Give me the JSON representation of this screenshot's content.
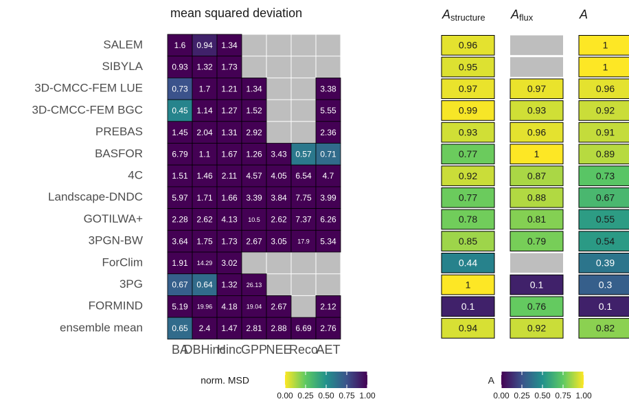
{
  "chart_data": [
    {
      "type": "heatmap",
      "title": "mean squared deviation",
      "rows": [
        "SALEM",
        "SIBYLA",
        "3D-CMCC-FEM LUE",
        "3D-CMCC-FEM BGC",
        "PREBAS",
        "BASFOR",
        "4C",
        "Landscape-DNDC",
        "GOTILWA+",
        "3PGN-BW",
        "ForClim",
        "3PG",
        "FORMIND",
        "ensemble mean"
      ],
      "columns": [
        "BA",
        "DBHinc",
        "Hinc",
        "GPP",
        "NEE",
        "Reco",
        "AET"
      ],
      "values": [
        [
          1.6,
          0.94,
          1.34,
          null,
          null,
          null,
          null
        ],
        [
          0.93,
          1.32,
          1.73,
          null,
          null,
          null,
          null
        ],
        [
          0.73,
          1.7,
          1.21,
          1.34,
          null,
          null,
          3.38
        ],
        [
          0.45,
          1.14,
          1.27,
          1.52,
          null,
          null,
          5.55
        ],
        [
          1.45,
          2.04,
          1.31,
          2.92,
          null,
          null,
          2.36
        ],
        [
          6.79,
          1.1,
          1.67,
          1.26,
          3.43,
          0.57,
          0.71
        ],
        [
          1.51,
          1.46,
          2.11,
          4.57,
          4.05,
          6.54,
          4.7
        ],
        [
          5.97,
          1.71,
          1.66,
          3.39,
          3.84,
          7.75,
          3.99
        ],
        [
          2.28,
          2.62,
          4.13,
          10.5,
          2.62,
          7.37,
          6.26
        ],
        [
          3.64,
          1.75,
          1.73,
          2.67,
          3.05,
          17.9,
          5.34
        ],
        [
          1.91,
          14.29,
          3.02,
          null,
          null,
          null,
          null
        ],
        [
          0.67,
          0.64,
          1.32,
          26.13,
          null,
          null,
          null
        ],
        [
          5.19,
          19.96,
          4.18,
          19.04,
          2.67,
          null,
          2.12
        ],
        [
          0.65,
          2.4,
          1.47,
          2.81,
          2.88,
          6.69,
          2.76
        ]
      ],
      "norm": [
        [
          1,
          0.9,
          1,
          null,
          null,
          null,
          null
        ],
        [
          1,
          1,
          1,
          null,
          null,
          null,
          null
        ],
        [
          0.75,
          1,
          1,
          1,
          null,
          null,
          1
        ],
        [
          0.55,
          1,
          1,
          1,
          null,
          null,
          1
        ],
        [
          1,
          1,
          1,
          1,
          null,
          null,
          1
        ],
        [
          1,
          1,
          1,
          1,
          1,
          0.6,
          0.65
        ],
        [
          1,
          1,
          1,
          1,
          1,
          1,
          1
        ],
        [
          1,
          1,
          1,
          1,
          1,
          1,
          1
        ],
        [
          1,
          1,
          1,
          1,
          1,
          1,
          1
        ],
        [
          1,
          1,
          1,
          1,
          1,
          1,
          1
        ],
        [
          1,
          1,
          1,
          null,
          null,
          null,
          null
        ],
        [
          0.7,
          0.65,
          1,
          1,
          null,
          null,
          null
        ],
        [
          1,
          1,
          1,
          1,
          1,
          null,
          1
        ],
        [
          0.65,
          1,
          1,
          1,
          1,
          1,
          1
        ]
      ],
      "missing_color": "#bebebe",
      "colorbar": {
        "title": "norm. MSD",
        "lim": [
          0,
          1
        ],
        "reverse": true,
        "ticks": [
          {
            "value": 0,
            "label": "0.00"
          },
          {
            "value": 0.25,
            "label": "0.25"
          },
          {
            "value": 0.5,
            "label": "0.50"
          },
          {
            "value": 0.75,
            "label": "0.75"
          },
          {
            "value": 1,
            "label": "1.00"
          }
        ]
      }
    },
    {
      "type": "column",
      "title": "A",
      "subscript": "structure",
      "values": [
        0.96,
        0.95,
        0.97,
        0.99,
        0.93,
        0.77,
        0.92,
        0.77,
        0.78,
        0.85,
        0.44,
        1,
        0.1,
        0.94
      ]
    },
    {
      "type": "column",
      "title": "A",
      "subscript": "flux",
      "values": [
        null,
        null,
        0.97,
        0.93,
        0.96,
        1,
        0.87,
        0.88,
        0.81,
        0.79,
        null,
        0.1,
        0.76,
        0.92
      ]
    },
    {
      "type": "column",
      "title": "A",
      "values": [
        1,
        1,
        0.96,
        0.92,
        0.91,
        0.89,
        0.73,
        0.67,
        0.55,
        0.54,
        0.39,
        0.3,
        0.1,
        0.82
      ],
      "colorbar": {
        "title": "A",
        "lim": [
          0,
          1
        ],
        "reverse": false,
        "ticks": [
          {
            "value": 0,
            "label": "0.00"
          },
          {
            "value": 0.25,
            "label": "0.25"
          },
          {
            "value": 0.5,
            "label": "0.50"
          },
          {
            "value": 0.75,
            "label": "0.75"
          },
          {
            "value": 1,
            "label": "1.00"
          }
        ]
      }
    }
  ]
}
